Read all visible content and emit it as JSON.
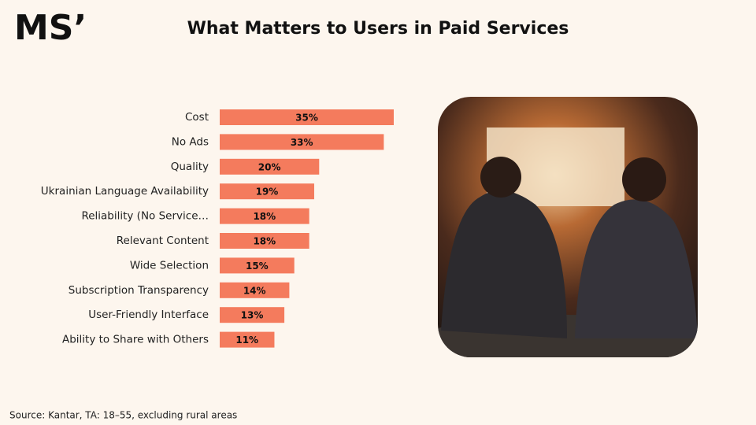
{
  "logo": "MS’",
  "chart_data": {
    "type": "bar",
    "orientation": "horizontal",
    "title": "What Matters to Users in Paid Services",
    "categories": [
      "Cost",
      "No Ads",
      "Quality",
      "Ukrainian Language Availability",
      "Reliability (No Service…",
      "Relevant Content",
      "Wide Selection",
      "Subscription Transparency",
      "User-Friendly Interface",
      "Ability to Share with Others"
    ],
    "values": [
      35,
      33,
      20,
      19,
      18,
      18,
      15,
      14,
      13,
      11
    ],
    "value_labels": [
      "35%",
      "33%",
      "20%",
      "19%",
      "18%",
      "18%",
      "15%",
      "14%",
      "13%",
      "11%"
    ],
    "color": "#f47b5d"
  },
  "source": "Source: Kantar, TA: 18–55, excluding rural areas"
}
